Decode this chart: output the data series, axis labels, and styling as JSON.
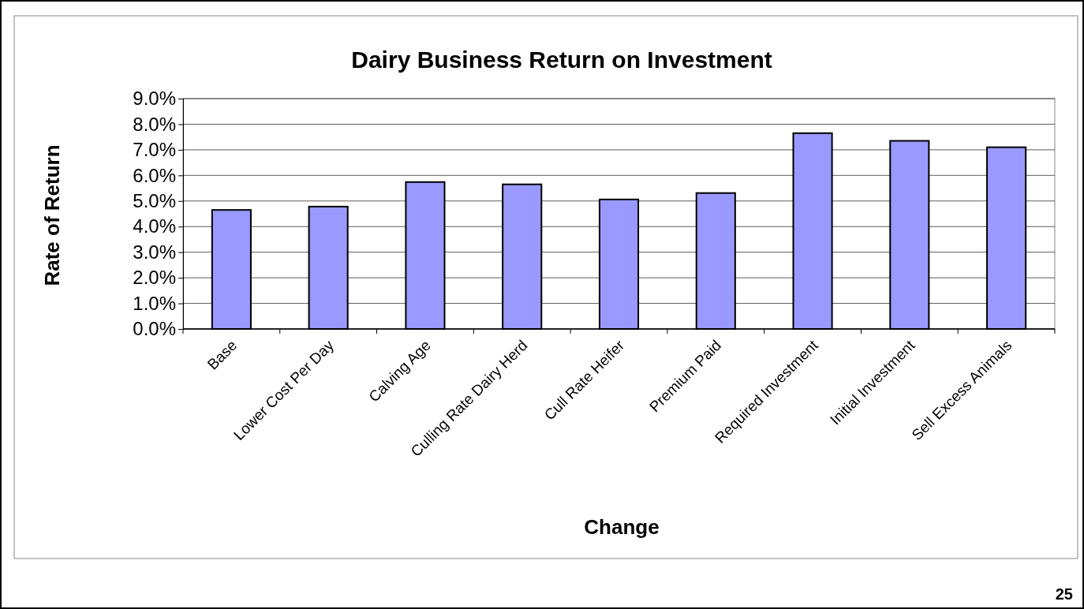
{
  "chart_data": {
    "type": "bar",
    "title": "Dairy Business Return on Investment",
    "xlabel": "Change",
    "ylabel": "Rate of Return",
    "categories": [
      "Base",
      "Lower Cost Per Day",
      "Calving Age",
      "Culling Rate Dairy Herd",
      "Cull Rate Heifer",
      "Premium Paid",
      "Required Investment",
      "Initial Investment",
      "Sell Excess Animals"
    ],
    "values": [
      4.65,
      4.78,
      5.74,
      5.65,
      5.06,
      5.31,
      7.65,
      7.35,
      7.1
    ],
    "color": "#9999ff",
    "ylim": [
      0,
      9
    ],
    "yticks": [
      {
        "value": 0,
        "label": "0.0%"
      },
      {
        "value": 1,
        "label": "1.0%"
      },
      {
        "value": 2,
        "label": "2.0%"
      },
      {
        "value": 3,
        "label": "3.0%"
      },
      {
        "value": 4,
        "label": "4.0%"
      },
      {
        "value": 5,
        "label": "5.0%"
      },
      {
        "value": 6,
        "label": "6.0%"
      },
      {
        "value": 7,
        "label": "7.0%"
      },
      {
        "value": 8,
        "label": "8.0%"
      },
      {
        "value": 9,
        "label": "9.0%"
      }
    ],
    "grid": "y",
    "annotations": [
      "25"
    ]
  }
}
